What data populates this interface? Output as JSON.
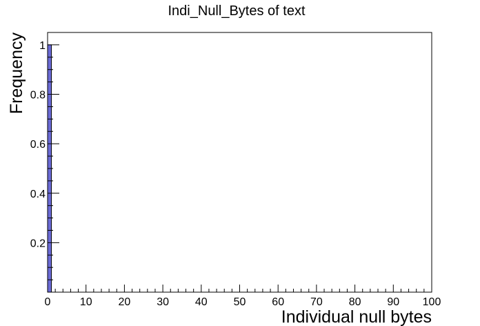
{
  "chart_data": {
    "type": "bar",
    "title": "Indi_Null_Bytes of text",
    "xlabel": "Individual null bytes",
    "ylabel": "Frequency",
    "x_range": [
      0,
      100
    ],
    "ylim": [
      0,
      1.05
    ],
    "x_ticks": [
      "0",
      "10",
      "20",
      "30",
      "40",
      "50",
      "60",
      "70",
      "80",
      "90",
      "100"
    ],
    "y_ticks": [
      "0.2",
      "0.4",
      "0.6",
      "0.8",
      "1"
    ],
    "bins": [
      {
        "x_start": 0,
        "x_end": 1,
        "value": 1
      }
    ],
    "bar_color": "#6b6bd6",
    "bar_edge_color": "#000000",
    "grid": false,
    "legend": "none"
  }
}
